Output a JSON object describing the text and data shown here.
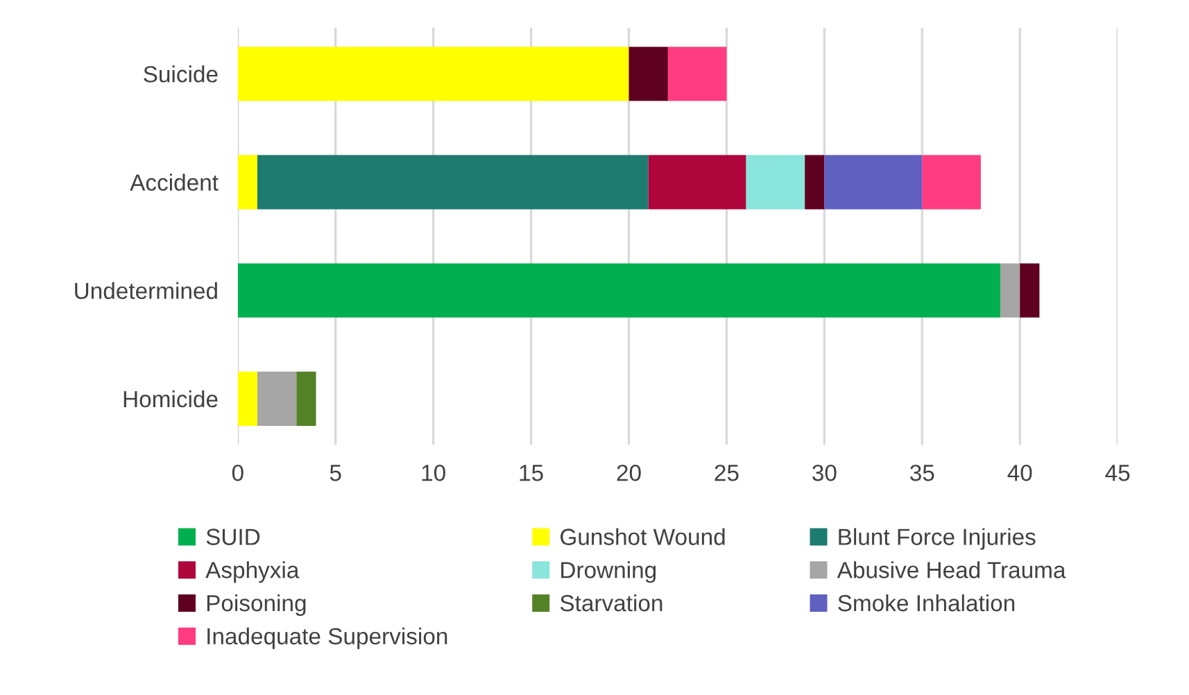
{
  "chart_data": {
    "type": "bar",
    "orientation": "horizontal",
    "stacked": true,
    "categories": [
      "Suicide",
      "Accident",
      "Undetermined",
      "Homicide"
    ],
    "series": [
      {
        "name": "SUID",
        "color": "#00b050",
        "values": [
          null,
          null,
          39,
          null
        ]
      },
      {
        "name": "Gunshot Wound",
        "color": "#ffff00",
        "values": [
          20,
          1,
          null,
          1
        ]
      },
      {
        "name": "Blunt Force Injuries",
        "color": "#1e7b70",
        "values": [
          null,
          20,
          null,
          null
        ]
      },
      {
        "name": "Asphyxia",
        "color": "#b0063e",
        "values": [
          null,
          5,
          null,
          null
        ]
      },
      {
        "name": "Drowning",
        "color": "#8ae5dc",
        "values": [
          null,
          3,
          null,
          null
        ]
      },
      {
        "name": "Abusive Head Trauma",
        "color": "#a6a6a6",
        "values": [
          null,
          null,
          1,
          2
        ]
      },
      {
        "name": "Poisoning",
        "color": "#600020",
        "values": [
          2,
          1,
          1,
          null
        ]
      },
      {
        "name": "Starvation",
        "color": "#548226",
        "values": [
          null,
          null,
          null,
          1
        ]
      },
      {
        "name": "Smoke Inhalation",
        "color": "#6060c0",
        "values": [
          null,
          5,
          null,
          null
        ]
      },
      {
        "name": "Inadequate Supervision",
        "color": "#ff3c80",
        "values": [
          3,
          3,
          null,
          null
        ]
      }
    ],
    "xlim": [
      0,
      45
    ],
    "xticks": [
      0,
      5,
      10,
      15,
      20,
      25,
      30,
      35,
      40,
      45
    ],
    "grid": "x",
    "legend": "bottom"
  }
}
